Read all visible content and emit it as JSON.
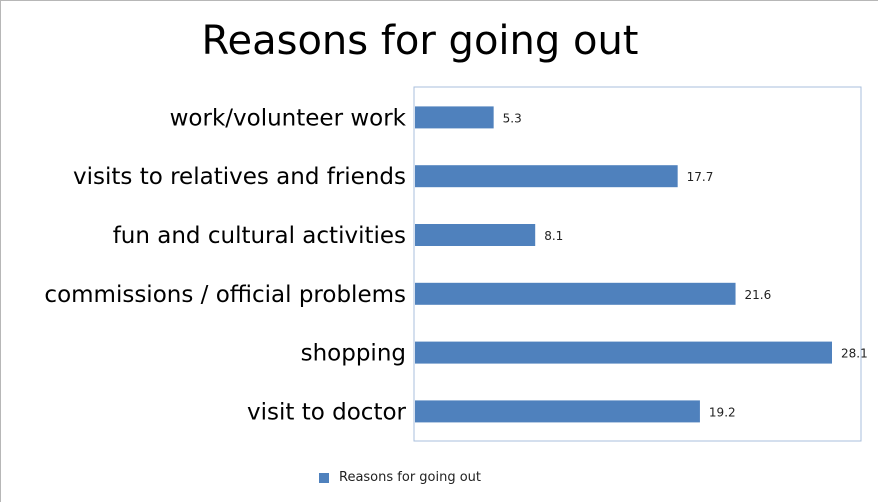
{
  "chart_data": {
    "type": "bar",
    "orientation": "horizontal",
    "title": "Reasons for going out",
    "categories": [
      "work/volunteer work",
      "visits to relatives and friends",
      "fun and cultural activities",
      "commissions / official problems",
      "shopping",
      "visit to doctor"
    ],
    "series": [
      {
        "name": "Reasons for going out",
        "values": [
          5.3,
          17.7,
          8.1,
          21.6,
          28.1,
          19.2
        ],
        "color": "#4f81bd"
      }
    ],
    "xlim": [
      0,
      28.1
    ],
    "grid": false,
    "legend_position": "bottom",
    "data_labels": true
  }
}
